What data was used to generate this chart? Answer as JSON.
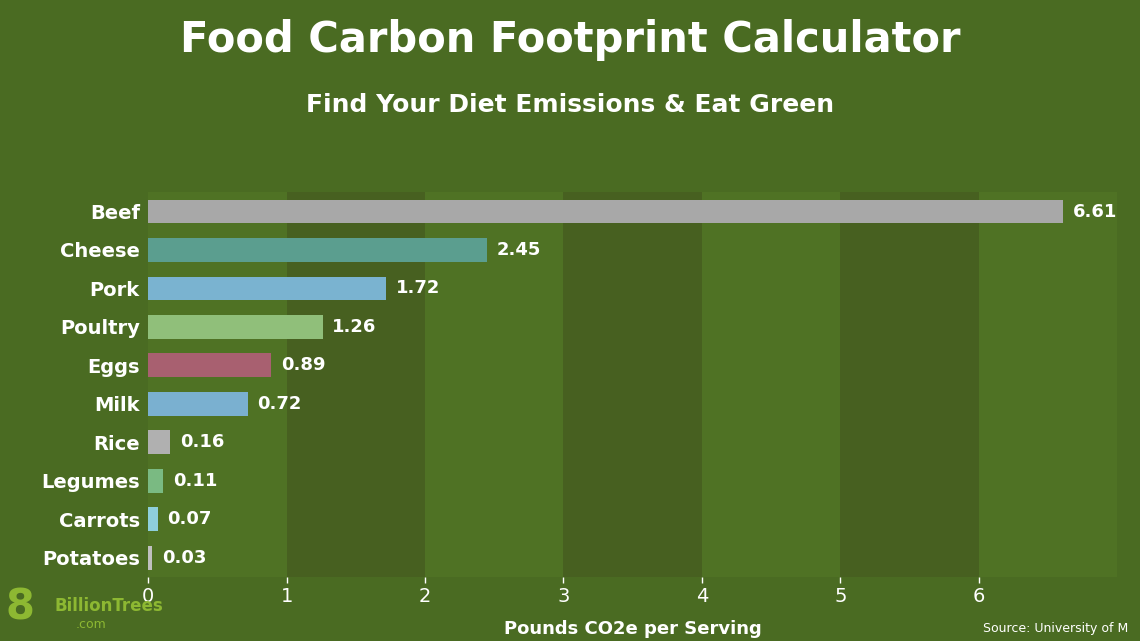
{
  "title": "Food Carbon Footprint Calculator",
  "subtitle": "Find Your Diet Emissions & Eat Green",
  "xlabel": "Pounds CO2e per Serving",
  "source": "Source: University of M",
  "background_color": "#4a6b22",
  "stripe_colors_odd": "#4f7224",
  "stripe_colors_even": "#476020",
  "categories": [
    "Beef",
    "Cheese",
    "Pork",
    "Poultry",
    "Eggs",
    "Milk",
    "Rice",
    "Legumes",
    "Carrots",
    "Potatoes"
  ],
  "values": [
    6.61,
    2.45,
    1.72,
    1.26,
    0.89,
    0.72,
    0.16,
    0.11,
    0.07,
    0.03
  ],
  "bar_colors": [
    "#a8a8a8",
    "#5b9e8f",
    "#7ab3d0",
    "#90bf7a",
    "#a86070",
    "#7ab0d0",
    "#b0b0b0",
    "#7aba82",
    "#8ecfdb",
    "#c0c0c0"
  ],
  "label_color": "#ffffff",
  "title_color": "#ffffff",
  "subtitle_color": "#ffffff",
  "value_color": "#ffffff",
  "tick_color": "#ffffff",
  "xlim": [
    0,
    7
  ],
  "xticks": [
    0,
    1,
    2,
    3,
    4,
    5,
    6
  ],
  "title_fontsize": 30,
  "subtitle_fontsize": 18,
  "label_fontsize": 14,
  "value_fontsize": 13,
  "xlabel_fontsize": 13,
  "logo_color": "#8db832",
  "bar_height": 0.62
}
